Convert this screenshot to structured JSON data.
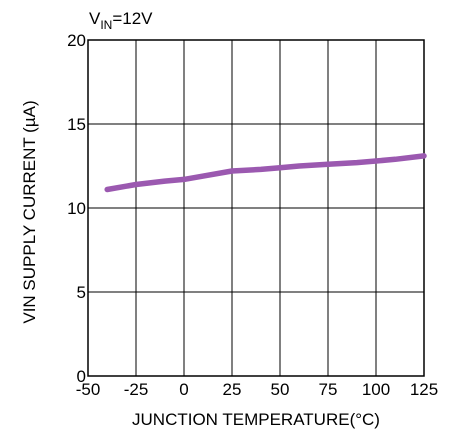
{
  "chart_data": {
    "type": "line",
    "annotation": {
      "main": "V",
      "sub": "IN",
      "suffix": "=12V"
    },
    "title": "",
    "xlabel": "JUNCTION TEMPERATURE(°C)",
    "ylabel": "VIN SUPPLY CURRENT (µA)",
    "xlim": [
      -50,
      125
    ],
    "ylim": [
      0,
      20
    ],
    "xticks": [
      -50,
      -25,
      0,
      25,
      50,
      75,
      100,
      125
    ],
    "yticks": [
      0,
      5,
      10,
      15,
      20
    ],
    "grid": true,
    "legend": "none",
    "series": [
      {
        "color": "#9b59b0",
        "x": [
          -40,
          -25,
          -10,
          0,
          10,
          25,
          40,
          50,
          60,
          75,
          90,
          100,
          110,
          125
        ],
        "y": [
          11.1,
          11.4,
          11.6,
          11.7,
          11.9,
          12.2,
          12.3,
          12.4,
          12.5,
          12.6,
          12.7,
          12.8,
          12.9,
          13.1
        ]
      }
    ]
  }
}
